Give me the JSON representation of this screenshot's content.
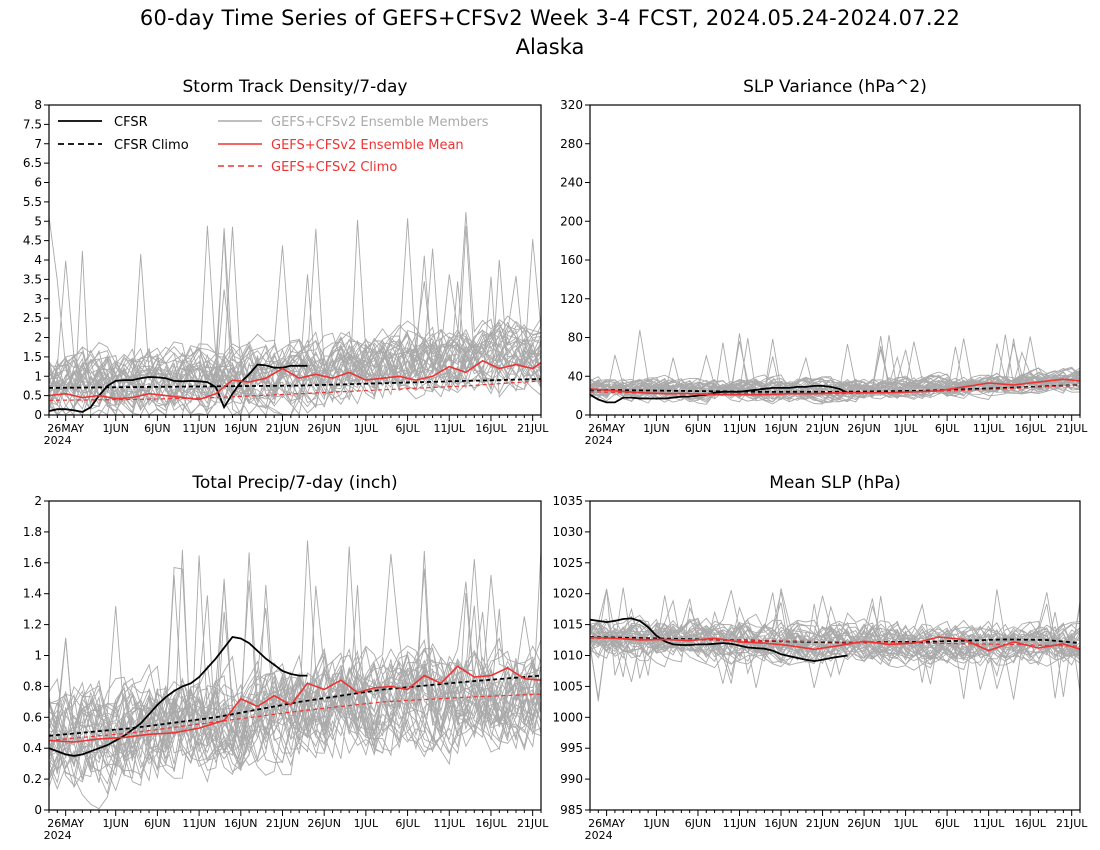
{
  "figure": {
    "title_line1": "60-day Time Series of GEFS+CFSv2 Week 3-4 FCST, 2024.05.24-2024.07.22",
    "title_line2": "Alaska"
  },
  "x_axis": {
    "tick_labels": [
      "26MAY",
      "1JUN",
      "6JUN",
      "11JUN",
      "16JUN",
      "21JUN",
      "26JUN",
      "1JUL",
      "6JUL",
      "11JUL",
      "16JUL",
      "21JUL"
    ],
    "tick_days": [
      2,
      8,
      13,
      18,
      23,
      28,
      33,
      38,
      43,
      48,
      53,
      58
    ],
    "year_label": "2024",
    "day_range": [
      0,
      59
    ]
  },
  "legend": {
    "cfsr": "CFSR",
    "cfsr_climo": "CFSR Climo",
    "members": "GEFS+CFSv2 Ensemble Members",
    "mean": "GEFS+CFSv2 Ensemble Mean",
    "climo": "GEFS+CFSv2 Climo"
  },
  "colors": {
    "cfsr": "#000000",
    "members": "#aaaaaa",
    "mean": "#ee3333",
    "climo": "#ee3333"
  },
  "chart_data": [
    {
      "id": "storm",
      "type": "line",
      "title": "Storm Track Density/7-day",
      "x_unit": "day index from 2024-05-24",
      "ylim": [
        0,
        8
      ],
      "yticks": [
        0,
        0.5,
        1,
        1.5,
        2,
        2.5,
        3,
        3.5,
        4,
        4.5,
        5,
        5.5,
        6,
        6.5,
        7,
        7.5,
        8
      ],
      "ytick_labels": [
        "0",
        "0.5",
        "1",
        "1.5",
        "2",
        "2.5",
        "3",
        "3.5",
        "4",
        "4.5",
        "5",
        "5.5",
        "6",
        "6.5",
        "7",
        "7.5",
        "8"
      ],
      "legend_position": "top",
      "ensemble_envelope": {
        "low": 0.0,
        "high": 2.9,
        "max_spike": 5.3
      },
      "series": [
        {
          "name": "CFSR",
          "x": [
            0,
            1,
            2,
            3,
            4,
            5,
            6,
            7,
            8,
            9,
            10,
            11,
            12,
            13,
            14,
            15,
            16,
            17,
            18,
            19,
            20,
            21,
            22,
            23,
            24,
            25,
            26,
            27,
            28,
            29,
            30,
            31
          ],
          "values": [
            0.1,
            0.15,
            0.15,
            0.12,
            0.08,
            0.2,
            0.5,
            0.75,
            0.88,
            0.9,
            0.9,
            0.95,
            0.98,
            0.97,
            0.95,
            0.88,
            0.87,
            0.88,
            0.87,
            0.85,
            0.72,
            0.2,
            0.55,
            0.85,
            1.05,
            1.3,
            1.28,
            1.22,
            1.22,
            1.27,
            1.27,
            1.27
          ]
        },
        {
          "name": "CFSR Climo",
          "x": [
            0,
            10,
            20,
            30,
            40,
            50,
            59
          ],
          "values": [
            0.7,
            0.72,
            0.74,
            0.76,
            0.82,
            0.88,
            0.93
          ]
        },
        {
          "name": "GEFS+CFSv2 Ensemble Mean",
          "x": [
            0,
            2,
            4,
            6,
            8,
            10,
            12,
            14,
            16,
            18,
            20,
            22,
            24,
            26,
            28,
            30,
            32,
            34,
            36,
            38,
            40,
            42,
            44,
            46,
            48,
            50,
            52,
            54,
            56,
            58,
            59
          ],
          "values": [
            0.5,
            0.55,
            0.45,
            0.5,
            0.42,
            0.45,
            0.55,
            0.5,
            0.45,
            0.4,
            0.55,
            0.9,
            0.85,
            0.95,
            1.2,
            0.95,
            1.05,
            0.95,
            1.1,
            0.9,
            0.95,
            1.0,
            0.9,
            1.0,
            1.25,
            1.1,
            1.4,
            1.2,
            1.3,
            1.2,
            1.35
          ]
        },
        {
          "name": "GEFS+CFSv2 Climo",
          "x": [
            0,
            10,
            20,
            30,
            40,
            50,
            59
          ],
          "values": [
            0.38,
            0.4,
            0.45,
            0.55,
            0.65,
            0.75,
            0.88
          ]
        }
      ]
    },
    {
      "id": "slpvar",
      "type": "line",
      "title": "SLP Variance (hPa^2)",
      "x_unit": "day index from 2024-05-24",
      "ylim": [
        0,
        320
      ],
      "yticks": [
        0,
        40,
        80,
        120,
        160,
        200,
        240,
        280,
        320
      ],
      "ytick_labels": [
        "0",
        "40",
        "80",
        "120",
        "160",
        "200",
        "240",
        "280",
        "320"
      ],
      "ensemble_envelope": {
        "low": 12,
        "high": 50,
        "max_spike": 88
      },
      "series": [
        {
          "name": "CFSR",
          "x": [
            0,
            1,
            2,
            3,
            4,
            5,
            6,
            7,
            8,
            9,
            10,
            11,
            12,
            13,
            14,
            15,
            16,
            17,
            18,
            19,
            20,
            21,
            22,
            23,
            24,
            25,
            26,
            27,
            28,
            29,
            30,
            31
          ],
          "values": [
            21,
            16,
            13,
            13,
            18,
            18,
            17,
            17,
            17,
            17,
            18,
            19,
            19,
            20,
            21,
            23,
            24,
            24,
            24,
            25,
            26,
            27,
            28,
            28,
            28,
            29,
            29,
            30,
            30,
            29,
            27,
            23
          ]
        },
        {
          "name": "CFSR Climo",
          "x": [
            0,
            10,
            20,
            30,
            40,
            50,
            59
          ],
          "values": [
            26,
            25,
            24,
            24,
            25,
            28,
            31
          ]
        },
        {
          "name": "GEFS+CFSv2 Ensemble Mean",
          "x": [
            0,
            3,
            6,
            9,
            12,
            15,
            18,
            21,
            24,
            27,
            30,
            33,
            36,
            39,
            42,
            45,
            48,
            51,
            54,
            57,
            59
          ],
          "values": [
            27,
            25,
            23,
            22,
            22,
            21,
            21,
            21,
            22,
            22,
            23,
            23,
            23,
            24,
            25,
            29,
            33,
            31,
            34,
            37,
            35
          ]
        },
        {
          "name": "GEFS+CFSv2 Climo",
          "x": [
            0,
            10,
            20,
            30,
            40,
            50,
            59
          ],
          "values": [
            24,
            22,
            22,
            22,
            24,
            27,
            31
          ]
        }
      ]
    },
    {
      "id": "precip",
      "type": "line",
      "title": "Total Precip/7-day (inch)",
      "x_unit": "day index from 2024-05-24",
      "ylim": [
        0,
        2
      ],
      "yticks": [
        0,
        0.2,
        0.4,
        0.6,
        0.8,
        1,
        1.2,
        1.4,
        1.6,
        1.8,
        2
      ],
      "ytick_labels": [
        "0",
        "0.2",
        "0.4",
        "0.6",
        "0.8",
        "1",
        "1.2",
        "1.4",
        "1.6",
        "1.8",
        "2"
      ],
      "ensemble_envelope": {
        "low": 0.2,
        "high": 1.3,
        "max_spike": 1.75
      },
      "series": [
        {
          "name": "CFSR",
          "x": [
            0,
            1,
            2,
            3,
            4,
            5,
            6,
            7,
            8,
            9,
            10,
            11,
            12,
            13,
            14,
            15,
            16,
            17,
            18,
            19,
            20,
            21,
            22,
            23,
            24,
            25,
            26,
            27,
            28,
            29,
            30,
            31
          ],
          "values": [
            0.4,
            0.38,
            0.36,
            0.35,
            0.36,
            0.38,
            0.4,
            0.42,
            0.45,
            0.48,
            0.52,
            0.56,
            0.62,
            0.68,
            0.73,
            0.77,
            0.8,
            0.82,
            0.86,
            0.92,
            0.98,
            1.05,
            1.12,
            1.11,
            1.08,
            1.03,
            0.98,
            0.94,
            0.9,
            0.88,
            0.87,
            0.87
          ]
        },
        {
          "name": "CFSR Climo",
          "x": [
            0,
            10,
            20,
            30,
            40,
            50,
            59
          ],
          "values": [
            0.48,
            0.53,
            0.6,
            0.7,
            0.78,
            0.83,
            0.87
          ]
        },
        {
          "name": "GEFS+CFSv2 Ensemble Mean",
          "x": [
            0,
            3,
            6,
            9,
            12,
            15,
            18,
            21,
            23,
            25,
            27,
            29,
            31,
            33,
            35,
            37,
            39,
            41,
            43,
            45,
            47,
            49,
            51,
            53,
            55,
            57,
            59
          ],
          "values": [
            0.45,
            0.44,
            0.46,
            0.47,
            0.49,
            0.5,
            0.53,
            0.58,
            0.72,
            0.67,
            0.74,
            0.68,
            0.82,
            0.78,
            0.84,
            0.76,
            0.79,
            0.8,
            0.78,
            0.87,
            0.82,
            0.93,
            0.86,
            0.87,
            0.92,
            0.85,
            0.84
          ]
        },
        {
          "name": "GEFS+CFSv2 Climo",
          "x": [
            0,
            10,
            20,
            30,
            40,
            50,
            59
          ],
          "values": [
            0.45,
            0.5,
            0.57,
            0.64,
            0.7,
            0.73,
            0.75
          ]
        }
      ]
    },
    {
      "id": "slp",
      "type": "line",
      "title": "Mean SLP (hPa)",
      "x_unit": "day index from 2024-05-24",
      "ylim": [
        985,
        1035
      ],
      "yticks": [
        985,
        990,
        995,
        1000,
        1005,
        1010,
        1015,
        1020,
        1025,
        1030,
        1035
      ],
      "ytick_labels": [
        "985",
        "990",
        "995",
        "1000",
        "1005",
        "1010",
        "1015",
        "1020",
        "1025",
        "1030",
        "1035"
      ],
      "ensemble_envelope": {
        "low": 1007,
        "high": 1018,
        "min_spike": 1002,
        "max_spike": 1021
      },
      "series": [
        {
          "name": "CFSR",
          "x": [
            0,
            1,
            2,
            3,
            4,
            5,
            6,
            7,
            8,
            9,
            10,
            11,
            12,
            13,
            14,
            15,
            16,
            17,
            18,
            19,
            20,
            21,
            22,
            23,
            24,
            25,
            26,
            27,
            28,
            29,
            30,
            31
          ],
          "values": [
            1015.8,
            1015.6,
            1015.4,
            1015.6,
            1015.9,
            1016,
            1015.6,
            1014.6,
            1013.2,
            1012.3,
            1011.8,
            1011.7,
            1011.7,
            1011.8,
            1011.8,
            1011.9,
            1012,
            1011.9,
            1011.6,
            1011.3,
            1011.2,
            1011.1,
            1010.8,
            1010.2,
            1009.9,
            1009.6,
            1009.3,
            1009.1,
            1009.3,
            1009.6,
            1009.8,
            1010
          ]
        },
        {
          "name": "CFSR Climo",
          "x": [
            0,
            10,
            20,
            30,
            40,
            45,
            50,
            55,
            59
          ],
          "values": [
            1013,
            1012.7,
            1012.4,
            1012.1,
            1012.2,
            1012.4,
            1012.6,
            1012.5,
            1012
          ]
        },
        {
          "name": "GEFS+CFSv2 Ensemble Mean",
          "x": [
            0,
            3,
            6,
            9,
            12,
            15,
            18,
            21,
            24,
            27,
            30,
            33,
            36,
            39,
            42,
            45,
            48,
            51,
            54,
            57,
            59
          ],
          "values": [
            1012.9,
            1012.8,
            1012.5,
            1012.6,
            1012.4,
            1012.8,
            1012.2,
            1012,
            1011.6,
            1011,
            1011.6,
            1012.3,
            1011.8,
            1012,
            1013,
            1012.6,
            1010.8,
            1012.2,
            1011.2,
            1011.9,
            1011
          ]
        },
        {
          "name": "GEFS+CFSv2 Climo",
          "x": [
            0,
            10,
            20,
            30,
            40,
            50,
            59
          ],
          "values": [
            1012.8,
            1012.6,
            1012.4,
            1012.2,
            1012,
            1011.8,
            1011.5
          ]
        }
      ]
    }
  ]
}
